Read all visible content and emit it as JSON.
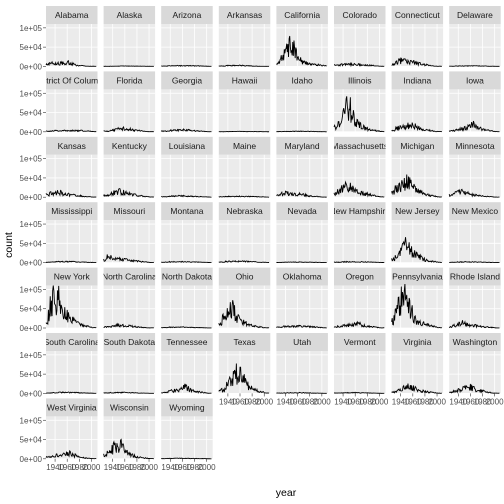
{
  "chart_data": {
    "type": "line",
    "layout": "facet-wrap",
    "ncol": 8,
    "xlabel": "year",
    "ylabel": "count",
    "xlim": [
      1925,
      2010
    ],
    "ylim": [
      0,
      110000
    ],
    "x_ticks": [
      1940,
      1960,
      1980,
      2000
    ],
    "x_tick_labels": [
      "1940",
      "1960",
      "1980",
      "2000"
    ],
    "y_ticks": [
      0,
      50000,
      100000
    ],
    "y_tick_labels": [
      "0e+00",
      "5e+04",
      "1e+05"
    ],
    "grid": true,
    "colors": {
      "panel": "#ebebeb",
      "strip": "#d9d9d9",
      "grid": "#ffffff",
      "line": "#000000"
    },
    "panels": [
      {
        "label": "Alabama",
        "peaks": [
          [
            1930,
            9000
          ],
          [
            1950,
            8000
          ],
          [
            1962,
            12000
          ],
          [
            1975,
            3000
          ]
        ]
      },
      {
        "label": "Alaska",
        "peaks": [
          [
            1935,
            500
          ],
          [
            1960,
            1000
          ],
          [
            1990,
            500
          ]
        ]
      },
      {
        "label": "Arizona",
        "peaks": [
          [
            1935,
            1500
          ],
          [
            1960,
            2000
          ],
          [
            1985,
            1500
          ]
        ]
      },
      {
        "label": "Arkansas",
        "peaks": [
          [
            1935,
            2000
          ],
          [
            1955,
            3000
          ],
          [
            1975,
            1500
          ]
        ]
      },
      {
        "label": "California",
        "peaks": [
          [
            1930,
            15000
          ],
          [
            1940,
            35000
          ],
          [
            1948,
            60000
          ],
          [
            1955,
            45000
          ],
          [
            1962,
            25000
          ],
          [
            1970,
            12000
          ],
          [
            1990,
            5000
          ]
        ]
      },
      {
        "label": "Colorado",
        "peaks": [
          [
            1935,
            5000
          ],
          [
            1955,
            6000
          ],
          [
            1980,
            4000
          ]
        ]
      },
      {
        "label": "Connecticut",
        "peaks": [
          [
            1930,
            8000
          ],
          [
            1945,
            20000
          ],
          [
            1960,
            12000
          ],
          [
            1975,
            6000
          ]
        ]
      },
      {
        "label": "Delaware",
        "peaks": [
          [
            1935,
            1000
          ],
          [
            1960,
            1500
          ],
          [
            1985,
            800
          ]
        ]
      },
      {
        "label": "District Of Columbia",
        "peaks": [
          [
            1935,
            3000
          ],
          [
            1960,
            4000
          ],
          [
            1985,
            3000
          ]
        ]
      },
      {
        "label": "Florida",
        "peaks": [
          [
            1935,
            3000
          ],
          [
            1955,
            10000
          ],
          [
            1975,
            5000
          ]
        ]
      },
      {
        "label": "Georgia",
        "peaks": [
          [
            1935,
            3000
          ],
          [
            1960,
            6000
          ],
          [
            1980,
            3000
          ]
        ]
      },
      {
        "label": "Hawaii",
        "peaks": [
          [
            1935,
            500
          ],
          [
            1960,
            1000
          ],
          [
            1990,
            500
          ]
        ]
      },
      {
        "label": "Idaho",
        "peaks": [
          [
            1935,
            1000
          ],
          [
            1960,
            1500
          ],
          [
            1985,
            1000
          ]
        ]
      },
      {
        "label": "Illinois",
        "peaks": [
          [
            1930,
            20000
          ],
          [
            1940,
            45000
          ],
          [
            1948,
            75000
          ],
          [
            1955,
            55000
          ],
          [
            1962,
            30000
          ],
          [
            1970,
            15000
          ],
          [
            1985,
            5000
          ]
        ]
      },
      {
        "label": "Indiana",
        "peaks": [
          [
            1930,
            8000
          ],
          [
            1945,
            15000
          ],
          [
            1960,
            18000
          ],
          [
            1975,
            8000
          ]
        ]
      },
      {
        "label": "Iowa",
        "peaks": [
          [
            1935,
            5000
          ],
          [
            1955,
            12000
          ],
          [
            1965,
            20000
          ],
          [
            1980,
            6000
          ]
        ]
      },
      {
        "label": "Kansas",
        "peaks": [
          [
            1930,
            12000
          ],
          [
            1945,
            15000
          ],
          [
            1960,
            8000
          ],
          [
            1980,
            4000
          ]
        ]
      },
      {
        "label": "Kentucky",
        "peaks": [
          [
            1935,
            8000
          ],
          [
            1950,
            18000
          ],
          [
            1960,
            12000
          ],
          [
            1980,
            5000
          ]
        ]
      },
      {
        "label": "Louisiana",
        "peaks": [
          [
            1935,
            2000
          ],
          [
            1960,
            4000
          ],
          [
            1985,
            2000
          ]
        ]
      },
      {
        "label": "Maine",
        "peaks": [
          [
            1935,
            2000
          ],
          [
            1960,
            2500
          ],
          [
            1985,
            1500
          ]
        ]
      },
      {
        "label": "Maryland",
        "peaks": [
          [
            1930,
            8000
          ],
          [
            1945,
            12000
          ],
          [
            1960,
            9000
          ],
          [
            1980,
            4000
          ]
        ]
      },
      {
        "label": "Massachusetts",
        "peaks": [
          [
            1930,
            15000
          ],
          [
            1945,
            30000
          ],
          [
            1955,
            25000
          ],
          [
            1965,
            15000
          ],
          [
            1980,
            8000
          ]
        ]
      },
      {
        "label": "Michigan",
        "peaks": [
          [
            1930,
            20000
          ],
          [
            1940,
            35000
          ],
          [
            1948,
            45000
          ],
          [
            1955,
            38000
          ],
          [
            1965,
            20000
          ],
          [
            1980,
            8000
          ]
        ]
      },
      {
        "label": "Minnesota",
        "peaks": [
          [
            1930,
            10000
          ],
          [
            1945,
            15000
          ],
          [
            1960,
            8000
          ],
          [
            1980,
            3000
          ]
        ]
      },
      {
        "label": "Mississippi",
        "peaks": [
          [
            1935,
            2000
          ],
          [
            1960,
            3000
          ],
          [
            1985,
            1500
          ]
        ]
      },
      {
        "label": "Missouri",
        "peaks": [
          [
            1930,
            15000
          ],
          [
            1945,
            12000
          ],
          [
            1960,
            8000
          ],
          [
            1980,
            4000
          ]
        ]
      },
      {
        "label": "Montana",
        "peaks": [
          [
            1935,
            2000
          ],
          [
            1960,
            2500
          ],
          [
            1985,
            1500
          ]
        ]
      },
      {
        "label": "Nebraska",
        "peaks": [
          [
            1935,
            3000
          ],
          [
            1960,
            4000
          ],
          [
            1985,
            2000
          ]
        ]
      },
      {
        "label": "Nevada",
        "peaks": [
          [
            1935,
            1000
          ],
          [
            1960,
            1500
          ],
          [
            1985,
            1000
          ]
        ]
      },
      {
        "label": "New Hampshire",
        "peaks": [
          [
            1935,
            2000
          ],
          [
            1960,
            2500
          ],
          [
            1985,
            1500
          ]
        ]
      },
      {
        "label": "New Jersey",
        "peaks": [
          [
            1930,
            15000
          ],
          [
            1940,
            30000
          ],
          [
            1948,
            48000
          ],
          [
            1955,
            35000
          ],
          [
            1965,
            20000
          ],
          [
            1980,
            8000
          ]
        ]
      },
      {
        "label": "New Mexico",
        "peaks": [
          [
            1935,
            1500
          ],
          [
            1960,
            2000
          ],
          [
            1985,
            1000
          ]
        ]
      },
      {
        "label": "New York",
        "peaks": [
          [
            1928,
            40000
          ],
          [
            1935,
            75000
          ],
          [
            1942,
            90000
          ],
          [
            1950,
            65000
          ],
          [
            1958,
            45000
          ],
          [
            1965,
            25000
          ],
          [
            1980,
            10000
          ]
        ]
      },
      {
        "label": "North Carolina",
        "peaks": [
          [
            1935,
            5000
          ],
          [
            1955,
            8000
          ],
          [
            1975,
            4000
          ]
        ]
      },
      {
        "label": "North Dakota",
        "peaks": [
          [
            1935,
            2000
          ],
          [
            1960,
            2500
          ],
          [
            1985,
            1000
          ]
        ]
      },
      {
        "label": "Ohio",
        "peaks": [
          [
            1930,
            25000
          ],
          [
            1940,
            45000
          ],
          [
            1948,
            50000
          ],
          [
            1955,
            30000
          ],
          [
            1965,
            18000
          ],
          [
            1980,
            6000
          ]
        ]
      },
      {
        "label": "Oklahoma",
        "peaks": [
          [
            1935,
            4000
          ],
          [
            1960,
            6000
          ],
          [
            1985,
            3000
          ]
        ]
      },
      {
        "label": "Oregon",
        "peaks": [
          [
            1930,
            4000
          ],
          [
            1950,
            8000
          ],
          [
            1965,
            12000
          ],
          [
            1980,
            5000
          ]
        ]
      },
      {
        "label": "Pennsylvania",
        "peaks": [
          [
            1928,
            30000
          ],
          [
            1935,
            60000
          ],
          [
            1942,
            95000
          ],
          [
            1950,
            70000
          ],
          [
            1958,
            45000
          ],
          [
            1965,
            25000
          ],
          [
            1980,
            10000
          ]
        ]
      },
      {
        "label": "Rhode Island",
        "peaks": [
          [
            1930,
            5000
          ],
          [
            1945,
            15000
          ],
          [
            1960,
            8000
          ],
          [
            1980,
            4000
          ]
        ]
      },
      {
        "label": "South Carolina",
        "peaks": [
          [
            1935,
            2000
          ],
          [
            1960,
            3000
          ],
          [
            1985,
            1500
          ]
        ]
      },
      {
        "label": "South Dakota",
        "peaks": [
          [
            1935,
            2000
          ],
          [
            1960,
            2500
          ],
          [
            1985,
            1000
          ]
        ]
      },
      {
        "label": "Tennessee",
        "peaks": [
          [
            1935,
            5000
          ],
          [
            1955,
            10000
          ],
          [
            1965,
            18000
          ],
          [
            1980,
            6000
          ]
        ]
      },
      {
        "label": "Texas",
        "peaks": [
          [
            1935,
            15000
          ],
          [
            1945,
            35000
          ],
          [
            1952,
            55000
          ],
          [
            1960,
            60000
          ],
          [
            1968,
            35000
          ],
          [
            1980,
            12000
          ]
        ]
      },
      {
        "label": "Utah",
        "peaks": [
          [
            1935,
            1500
          ],
          [
            1960,
            2000
          ],
          [
            1985,
            1000
          ]
        ]
      },
      {
        "label": "Vermont",
        "peaks": [
          [
            1935,
            1500
          ],
          [
            1960,
            2000
          ],
          [
            1985,
            1000
          ]
        ]
      },
      {
        "label": "Virginia",
        "peaks": [
          [
            1930,
            6000
          ],
          [
            1945,
            15000
          ],
          [
            1955,
            20000
          ],
          [
            1965,
            12000
          ],
          [
            1980,
            5000
          ]
        ]
      },
      {
        "label": "Washington",
        "peaks": [
          [
            1930,
            5000
          ],
          [
            1945,
            12000
          ],
          [
            1960,
            18000
          ],
          [
            1975,
            8000
          ]
        ]
      },
      {
        "label": "West Virginia",
        "peaks": [
          [
            1935,
            8000
          ],
          [
            1955,
            12000
          ],
          [
            1965,
            15000
          ],
          [
            1980,
            4000
          ]
        ]
      },
      {
        "label": "Wisconsin",
        "peaks": [
          [
            1930,
            15000
          ],
          [
            1940,
            30000
          ],
          [
            1948,
            40000
          ],
          [
            1955,
            35000
          ],
          [
            1965,
            15000
          ],
          [
            1980,
            5000
          ]
        ]
      },
      {
        "label": "Wyoming",
        "peaks": [
          [
            1935,
            1000
          ],
          [
            1960,
            1500
          ],
          [
            1985,
            800
          ]
        ]
      }
    ]
  }
}
